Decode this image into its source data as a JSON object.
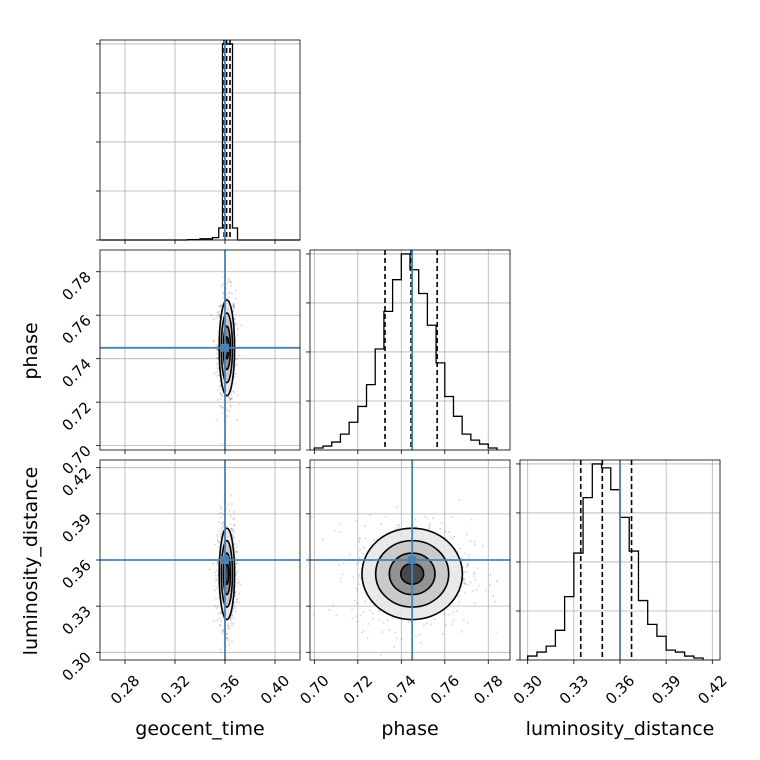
{
  "chart_data": {
    "type": "corner",
    "parameters": [
      "geocent_time",
      "phase",
      "luminosity_distance"
    ],
    "truths": {
      "geocent_time": 0.36,
      "phase": 0.745,
      "luminosity_distance": 0.36
    },
    "grid": true,
    "panels": [
      {
        "kind": "hist",
        "param": "geocent_time",
        "xlim": [
          0.26,
          0.42
        ],
        "xticks": [
          0.28,
          0.32,
          0.36,
          0.4
        ],
        "bins": {
          "edges": [
            0.26,
            0.27,
            0.28,
            0.29,
            0.3,
            0.31,
            0.32,
            0.33,
            0.34,
            0.35,
            0.355,
            0.358,
            0.36,
            0.362,
            0.364,
            0.366,
            0.37,
            0.38,
            0.39,
            0.4,
            0.41,
            0.42
          ],
          "counts": [
            0,
            0,
            0,
            0,
            0,
            0,
            0,
            0.2,
            0.6,
            1.2,
            6.0,
            98,
            98,
            98,
            98,
            6.0,
            0,
            0,
            0,
            0,
            0
          ]
        },
        "quantiles": [
          0.3593,
          0.3613,
          0.364
        ]
      },
      {
        "kind": "hist",
        "param": "phase",
        "xlim": [
          0.698,
          0.79
        ],
        "xticks": [
          0.7,
          0.72,
          0.74,
          0.76,
          0.78
        ],
        "bins": {
          "edges": [
            0.7,
            0.704,
            0.708,
            0.712,
            0.716,
            0.72,
            0.724,
            0.728,
            0.732,
            0.736,
            0.74,
            0.744,
            0.748,
            0.752,
            0.756,
            0.76,
            0.764,
            0.768,
            0.772,
            0.776,
            0.78,
            0.784
          ],
          "counts": [
            1,
            2,
            4,
            8,
            14,
            22,
            33,
            51,
            70,
            86,
            99,
            91,
            79,
            63,
            44,
            27,
            17,
            8,
            5,
            3,
            1
          ]
        },
        "quantiles": [
          0.7325,
          0.7445,
          0.7565
        ]
      },
      {
        "kind": "hist",
        "param": "luminosity_distance",
        "xlim": [
          0.295,
          0.425
        ],
        "xticks": [
          0.3,
          0.33,
          0.36,
          0.39,
          0.42
        ],
        "bins": {
          "edges": [
            0.3,
            0.306,
            0.312,
            0.318,
            0.324,
            0.33,
            0.336,
            0.342,
            0.348,
            0.354,
            0.36,
            0.366,
            0.372,
            0.378,
            0.384,
            0.39,
            0.396,
            0.402,
            0.408,
            0.414
          ],
          "counts": [
            2,
            4,
            7,
            15,
            32,
            54,
            82,
            99,
            97,
            86,
            72,
            55,
            30,
            18,
            12,
            5,
            4,
            2,
            1
          ]
        },
        "quantiles": [
          0.3345,
          0.3485,
          0.3675
        ]
      },
      {
        "kind": "scatter2d",
        "x": "geocent_time",
        "y": "phase",
        "xlim": [
          0.26,
          0.42
        ],
        "ylim": [
          0.698,
          0.79
        ],
        "yticks": [
          0.7,
          0.72,
          0.74,
          0.76,
          0.78
        ],
        "center": [
          0.3615,
          0.745
        ],
        "spread": [
          0.0028,
          0.01
        ],
        "contour_levels": [
          0.5,
          1.0,
          1.6,
          2.2
        ]
      },
      {
        "kind": "scatter2d",
        "x": "geocent_time",
        "y": "luminosity_distance",
        "xlim": [
          0.26,
          0.42
        ],
        "ylim": [
          0.295,
          0.425
        ],
        "yticks": [
          0.3,
          0.33,
          0.36,
          0.39,
          0.42
        ],
        "center": [
          0.3615,
          0.351
        ],
        "spread": [
          0.0028,
          0.0135
        ],
        "contour_levels": [
          0.5,
          1.0,
          1.6,
          2.2
        ]
      },
      {
        "kind": "scatter2d",
        "x": "phase",
        "y": "luminosity_distance",
        "xlim": [
          0.698,
          0.79
        ],
        "ylim": [
          0.295,
          0.425
        ],
        "center": [
          0.745,
          0.351
        ],
        "spread": [
          0.0105,
          0.0135
        ],
        "contour_levels": [
          0.5,
          1.0,
          1.6,
          2.2
        ]
      }
    ],
    "colors": {
      "truth": "#4682b4",
      "hist": "#000000",
      "grid": "#b0b0b0",
      "points": "#000000"
    }
  },
  "labels": {
    "y_phase": "phase",
    "y_luminosity_distance": "luminosity_distance",
    "x_geocent_time": "geocent_time",
    "x_phase": "phase",
    "x_luminosity_distance": "luminosity_distance"
  }
}
